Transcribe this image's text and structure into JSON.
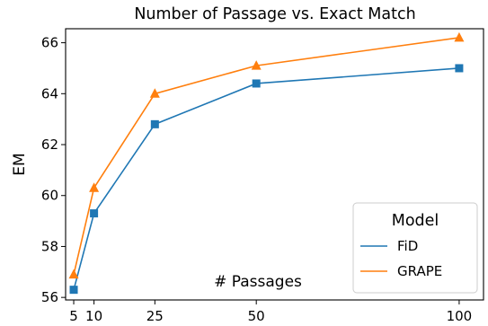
{
  "chart_data": {
    "type": "line",
    "title": "Number of Passage vs. Exact Match",
    "xlabel": "# Passages",
    "ylabel": "EM",
    "x": [
      5,
      10,
      25,
      50,
      100
    ],
    "x_ticks": [
      5,
      10,
      25,
      50,
      100
    ],
    "y_ticks": [
      56,
      58,
      60,
      62,
      64,
      66
    ],
    "xlim": [
      3,
      106
    ],
    "ylim": [
      55.9,
      66.55
    ],
    "grid": false,
    "legend": {
      "title": "Model",
      "placement": "lower-right"
    },
    "series": [
      {
        "name": "FiD",
        "values": [
          56.3,
          59.3,
          62.8,
          64.4,
          65.0
        ],
        "color": "#1f77b4",
        "marker": "square"
      },
      {
        "name": "GRAPE",
        "values": [
          56.9,
          60.3,
          64.0,
          65.1,
          66.2
        ],
        "color": "#ff7f0e",
        "marker": "triangle"
      }
    ]
  }
}
